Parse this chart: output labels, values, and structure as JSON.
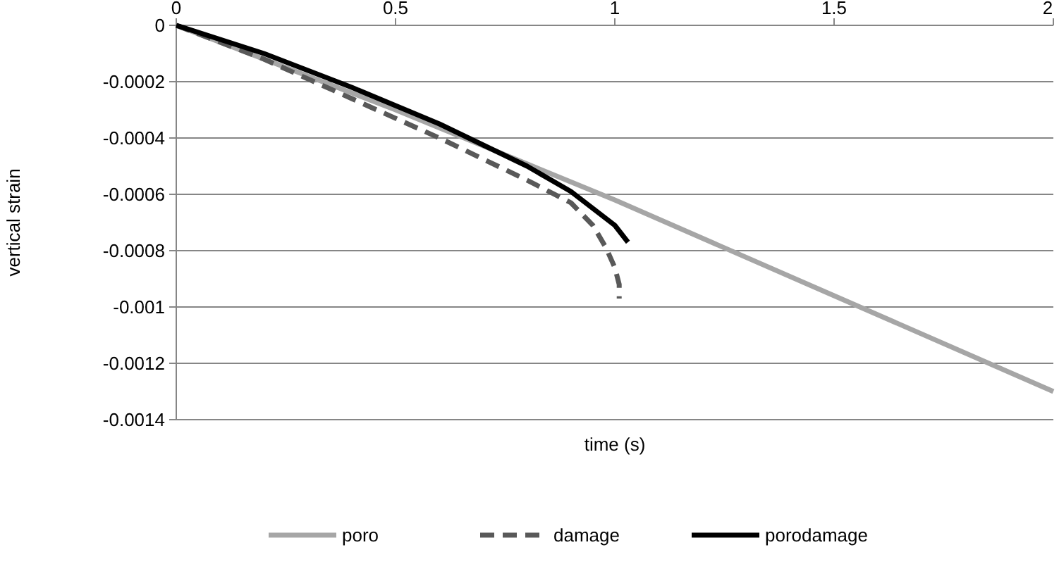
{
  "chart_data": {
    "type": "line",
    "xlabel": "time (s)",
    "ylabel": "vertical strain",
    "xlim": [
      0,
      2
    ],
    "xticks": [
      0,
      0.5,
      1,
      1.5,
      2
    ],
    "ylim": [
      -0.0014,
      0
    ],
    "yticks": [
      -0.0014,
      -0.0012,
      -0.001,
      -0.0008,
      -0.0006,
      -0.0004,
      -0.0002,
      0
    ],
    "grid": "y",
    "legend": "bottom",
    "series": [
      {
        "name": "poro",
        "color": "#a6a6a6",
        "line_style": "solid",
        "x": [
          0,
          0.5,
          1,
          1.5,
          2
        ],
        "values": [
          0,
          -0.0003,
          -0.00062,
          -0.00096,
          -0.0013
        ]
      },
      {
        "name": "damage",
        "color": "#595959",
        "line_style": "dashed",
        "x": [
          0,
          0.2,
          0.4,
          0.6,
          0.8,
          0.9,
          0.95,
          0.98,
          1.0,
          1.01,
          1.01
        ],
        "values": [
          0,
          -0.00012,
          -0.00026,
          -0.0004,
          -0.00055,
          -0.00063,
          -0.00071,
          -0.00079,
          -0.00086,
          -0.00092,
          -0.00097
        ]
      },
      {
        "name": "porodamage",
        "color": "#000000",
        "line_style": "solid",
        "x": [
          0,
          0.2,
          0.4,
          0.6,
          0.8,
          0.9,
          1.0,
          1.03
        ],
        "values": [
          0,
          -0.0001,
          -0.00022,
          -0.00035,
          -0.0005,
          -0.00059,
          -0.00071,
          -0.00077
        ]
      }
    ]
  }
}
